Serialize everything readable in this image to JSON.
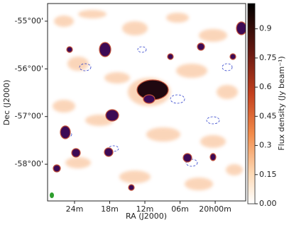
{
  "chart_data": {
    "type": "image",
    "xlabel": "RA (J2000)",
    "ylabel": "Dec (J2000)",
    "xlim": [
      28.6,
      -5.2
    ],
    "xticks": [
      {
        "value": 24,
        "label": "24m"
      },
      {
        "value": 18,
        "label": "18m"
      },
      {
        "value": 12,
        "label": "12m"
      },
      {
        "value": 6,
        "label": "06m"
      },
      {
        "value": 0,
        "label": "20h00m"
      }
    ],
    "ylim": [
      -58.77,
      -54.63
    ],
    "yticks": [
      {
        "value": -55,
        "label": "-55°00'"
      },
      {
        "value": -56,
        "label": "-56°00'"
      },
      {
        "value": -57,
        "label": "-57°00'"
      },
      {
        "value": -58,
        "label": "-58°00'"
      }
    ],
    "colorbar": {
      "label": "Flux density (Jy beam⁻¹)",
      "lim": [
        0,
        1.03
      ],
      "ticks": [
        {
          "value": 0,
          "label": "0.00"
        },
        0.15,
        0.3,
        0.45,
        0.6,
        0.75,
        0.9
      ]
    }
  }
}
